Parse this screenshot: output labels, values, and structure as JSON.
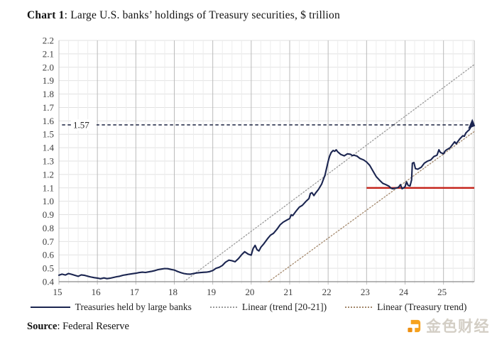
{
  "header": {
    "title_bold": "Chart 1",
    "title_rest": ": Large U.S. banks’ holdings of Treasury securities, $ trillion"
  },
  "source": {
    "bold": "Source",
    "rest": ": Federal Reserve"
  },
  "watermark": {
    "text": "金色财经"
  },
  "colors": {
    "main_line": "#1b2550",
    "trend_20_21": "#9a9a9a",
    "treasury_trend": "#a3876a",
    "red_support": "#c42118",
    "annotation": "#1a2240",
    "watermark_orange": "#f6a21d"
  },
  "chart_data": {
    "type": "line",
    "title": "Large U.S. banks' holdings of Treasury securities, $ trillion",
    "xlabel": "",
    "ylabel": "",
    "x_range": [
      15,
      25.8
    ],
    "y_range": [
      0.4,
      2.2
    ],
    "y_tick_step": 0.1,
    "x_minor_step": 0.25,
    "grid": true,
    "legend_position": "bottom",
    "y_ticks": [
      "0.4",
      "0.5",
      "0.6",
      "0.7",
      "0.8",
      "0.9",
      "1.0",
      "1.1",
      "1.2",
      "1.3",
      "1.4",
      "1.5",
      "1.6",
      "1.7",
      "1.8",
      "1.9",
      "2.0",
      "2.1",
      "2.2"
    ],
    "x_tick_labels": [
      "15",
      "16",
      "17",
      "18",
      "19",
      "20",
      "21",
      "22",
      "23",
      "24",
      "25"
    ],
    "series": [
      {
        "name": "Treasuries held by large banks",
        "style": "solid",
        "color": "#1b2550",
        "points": [
          [
            15.0,
            0.448
          ],
          [
            15.08,
            0.456
          ],
          [
            15.17,
            0.45
          ],
          [
            15.25,
            0.461
          ],
          [
            15.33,
            0.455
          ],
          [
            15.42,
            0.447
          ],
          [
            15.5,
            0.44
          ],
          [
            15.58,
            0.451
          ],
          [
            15.67,
            0.447
          ],
          [
            15.75,
            0.441
          ],
          [
            15.83,
            0.435
          ],
          [
            15.92,
            0.43
          ],
          [
            16.0,
            0.427
          ],
          [
            16.08,
            0.422
          ],
          [
            16.17,
            0.428
          ],
          [
            16.25,
            0.423
          ],
          [
            16.33,
            0.426
          ],
          [
            16.42,
            0.432
          ],
          [
            16.5,
            0.437
          ],
          [
            16.58,
            0.441
          ],
          [
            16.67,
            0.448
          ],
          [
            16.75,
            0.452
          ],
          [
            16.83,
            0.456
          ],
          [
            16.92,
            0.46
          ],
          [
            17.0,
            0.463
          ],
          [
            17.08,
            0.468
          ],
          [
            17.17,
            0.471
          ],
          [
            17.25,
            0.469
          ],
          [
            17.33,
            0.473
          ],
          [
            17.42,
            0.478
          ],
          [
            17.5,
            0.483
          ],
          [
            17.58,
            0.49
          ],
          [
            17.67,
            0.494
          ],
          [
            17.75,
            0.498
          ],
          [
            17.83,
            0.497
          ],
          [
            17.92,
            0.491
          ],
          [
            18.0,
            0.487
          ],
          [
            18.08,
            0.477
          ],
          [
            18.17,
            0.468
          ],
          [
            18.25,
            0.461
          ],
          [
            18.33,
            0.457
          ],
          [
            18.42,
            0.456
          ],
          [
            18.5,
            0.461
          ],
          [
            18.58,
            0.465
          ],
          [
            18.67,
            0.468
          ],
          [
            18.75,
            0.47
          ],
          [
            18.83,
            0.471
          ],
          [
            18.92,
            0.475
          ],
          [
            19.0,
            0.483
          ],
          [
            19.08,
            0.499
          ],
          [
            19.17,
            0.508
          ],
          [
            19.25,
            0.521
          ],
          [
            19.33,
            0.545
          ],
          [
            19.42,
            0.561
          ],
          [
            19.5,
            0.556
          ],
          [
            19.58,
            0.549
          ],
          [
            19.67,
            0.573
          ],
          [
            19.75,
            0.601
          ],
          [
            19.83,
            0.624
          ],
          [
            19.92,
            0.606
          ],
          [
            20.0,
            0.598
          ],
          [
            20.05,
            0.647
          ],
          [
            20.1,
            0.671
          ],
          [
            20.15,
            0.639
          ],
          [
            20.2,
            0.629
          ],
          [
            20.25,
            0.657
          ],
          [
            20.33,
            0.684
          ],
          [
            20.42,
            0.719
          ],
          [
            20.5,
            0.747
          ],
          [
            20.58,
            0.761
          ],
          [
            20.67,
            0.791
          ],
          [
            20.75,
            0.824
          ],
          [
            20.83,
            0.844
          ],
          [
            20.92,
            0.859
          ],
          [
            21.0,
            0.871
          ],
          [
            21.04,
            0.899
          ],
          [
            21.08,
            0.893
          ],
          [
            21.17,
            0.928
          ],
          [
            21.25,
            0.956
          ],
          [
            21.33,
            0.97
          ],
          [
            21.42,
            0.999
          ],
          [
            21.5,
            1.02
          ],
          [
            21.54,
            1.058
          ],
          [
            21.58,
            1.064
          ],
          [
            21.63,
            1.042
          ],
          [
            21.67,
            1.06
          ],
          [
            21.75,
            1.089
          ],
          [
            21.83,
            1.128
          ],
          [
            21.92,
            1.196
          ],
          [
            22.0,
            1.298
          ],
          [
            22.04,
            1.338
          ],
          [
            22.08,
            1.364
          ],
          [
            22.13,
            1.379
          ],
          [
            22.17,
            1.373
          ],
          [
            22.21,
            1.384
          ],
          [
            22.25,
            1.369
          ],
          [
            22.33,
            1.349
          ],
          [
            22.42,
            1.339
          ],
          [
            22.5,
            1.354
          ],
          [
            22.58,
            1.351
          ],
          [
            22.63,
            1.341
          ],
          [
            22.67,
            1.344
          ],
          [
            22.75,
            1.337
          ],
          [
            22.83,
            1.319
          ],
          [
            22.92,
            1.309
          ],
          [
            23.0,
            1.293
          ],
          [
            23.08,
            1.268
          ],
          [
            23.17,
            1.224
          ],
          [
            23.25,
            1.184
          ],
          [
            23.33,
            1.159
          ],
          [
            23.42,
            1.134
          ],
          [
            23.5,
            1.124
          ],
          [
            23.58,
            1.113
          ],
          [
            23.63,
            1.099
          ],
          [
            23.67,
            1.094
          ],
          [
            23.75,
            1.097
          ],
          [
            23.83,
            1.104
          ],
          [
            23.88,
            1.124
          ],
          [
            23.92,
            1.094
          ],
          [
            23.96,
            1.099
          ],
          [
            24.0,
            1.109
          ],
          [
            24.04,
            1.144
          ],
          [
            24.08,
            1.119
          ],
          [
            24.13,
            1.114
          ],
          [
            24.17,
            1.159
          ],
          [
            24.19,
            1.284
          ],
          [
            24.23,
            1.289
          ],
          [
            24.27,
            1.244
          ],
          [
            24.33,
            1.239
          ],
          [
            24.42,
            1.254
          ],
          [
            24.5,
            1.284
          ],
          [
            24.58,
            1.299
          ],
          [
            24.67,
            1.309
          ],
          [
            24.75,
            1.334
          ],
          [
            24.83,
            1.344
          ],
          [
            24.88,
            1.384
          ],
          [
            24.92,
            1.364
          ],
          [
            25.0,
            1.354
          ],
          [
            25.04,
            1.374
          ],
          [
            25.08,
            1.384
          ],
          [
            25.17,
            1.399
          ],
          [
            25.25,
            1.429
          ],
          [
            25.29,
            1.444
          ],
          [
            25.33,
            1.429
          ],
          [
            25.42,
            1.464
          ],
          [
            25.5,
            1.489
          ],
          [
            25.54,
            1.484
          ],
          [
            25.58,
            1.509
          ],
          [
            25.63,
            1.524
          ],
          [
            25.67,
            1.534
          ],
          [
            25.71,
            1.554
          ],
          [
            25.75,
            1.57
          ]
        ]
      },
      {
        "name": "Linear (trend [20-21])",
        "style": "dotted",
        "color": "#9a9a9a",
        "points": [
          [
            18.25,
            0.4
          ],
          [
            25.8,
            2.02
          ]
        ]
      },
      {
        "name": "Linear (Treasury trend)",
        "style": "dotted",
        "color": "#a3876a",
        "points": [
          [
            20.45,
            0.4
          ],
          [
            25.8,
            1.52
          ]
        ]
      }
    ],
    "annotations": {
      "dashed_level": {
        "label": "1.57",
        "value": 1.57,
        "x_start": 15.08,
        "x_end": 25.73,
        "color": "#1a2240"
      },
      "red_support": {
        "value": 1.1,
        "x_start": 23.0,
        "x_end": 25.8,
        "color": "#c42118"
      },
      "end_marker": {
        "x": 25.73,
        "y": 1.578
      }
    }
  }
}
